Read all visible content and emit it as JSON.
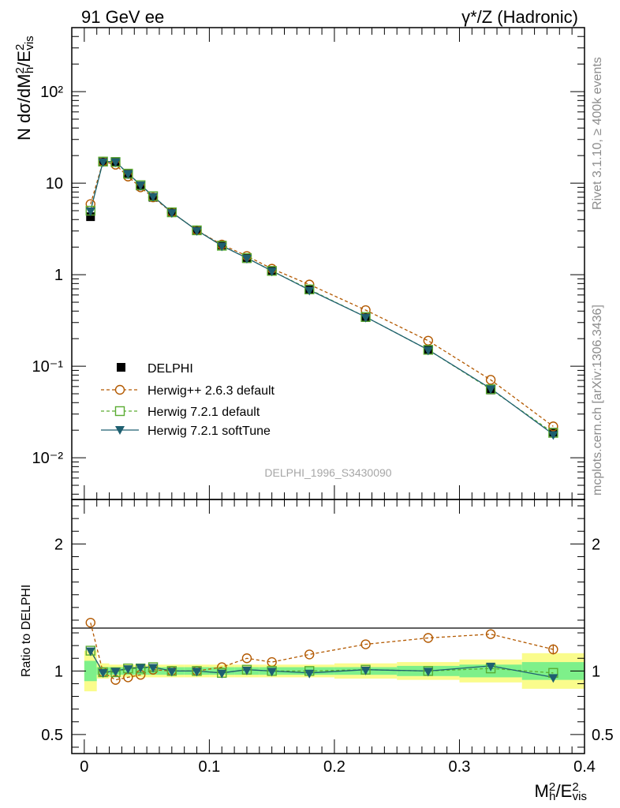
{
  "header": {
    "energy_label": "91 GeV ee",
    "process_label": "γ*/Z (Hadronic)"
  },
  "side_labels": {
    "rivet": "Rivet 3.1.10, ≥ 400k events",
    "mcplots": "mcplots.cern.ch [arXiv:1306.3436]"
  },
  "analysis_id": "DELPHI_1996_S3430090",
  "colors": {
    "data": "#000000",
    "herwigpp": "#b35900",
    "herwig_default": "#5aac32",
    "herwig_soft": "#1e5f70",
    "band_inner": "#7ef08a",
    "band_outer": "#fafc8c"
  },
  "chart_data": [
    {
      "type": "line",
      "panel": "main",
      "ylabel": "N dσ/dM²h/E²vis",
      "yscale": "log",
      "ylim": [
        0.0035,
        500
      ],
      "xlim": [
        -0.01,
        0.4
      ],
      "ytick_labels": [
        "10⁻²",
        "10⁻¹",
        "1",
        "10",
        "10²"
      ],
      "legend_position": "center-left",
      "x": [
        0.005,
        0.015,
        0.025,
        0.035,
        0.045,
        0.055,
        0.07,
        0.09,
        0.11,
        0.13,
        0.15,
        0.18,
        0.225,
        0.275,
        0.325,
        0.375
      ],
      "series": [
        {
          "name": "DELPHI",
          "values": [
            4.3,
            17.3,
            17.2,
            12.5,
            9.3,
            7.0,
            4.8,
            3.05,
            2.1,
            1.5,
            1.1,
            0.69,
            0.34,
            0.15,
            0.055,
            0.019
          ]
        },
        {
          "name": "Herwig++ 2.6.3 default",
          "values": [
            5.9,
            17.2,
            15.9,
            11.8,
            9.0,
            7.0,
            4.8,
            3.05,
            2.13,
            1.6,
            1.16,
            0.78,
            0.41,
            0.19,
            0.071,
            0.022
          ]
        },
        {
          "name": "Herwig 7.2.1 default",
          "values": [
            5.0,
            17.2,
            17.0,
            12.7,
            9.5,
            7.2,
            4.8,
            3.05,
            2.07,
            1.52,
            1.1,
            0.69,
            0.345,
            0.151,
            0.056,
            0.0187
          ]
        },
        {
          "name": "Herwig 7.2.1 softTune",
          "values": [
            5.0,
            17.2,
            17.2,
            12.7,
            9.6,
            7.2,
            4.8,
            3.05,
            2.07,
            1.52,
            1.1,
            0.68,
            0.345,
            0.151,
            0.057,
            0.018
          ]
        }
      ]
    },
    {
      "type": "line",
      "panel": "ratio",
      "ylabel": "Ratio to DELPHI",
      "ylim": [
        0.35,
        2.35
      ],
      "xlim": [
        -0.01,
        0.4
      ],
      "xlabel": "M²h/E²vis",
      "ytick_labels": [
        "0.5",
        "1",
        "2"
      ],
      "xtick_labels": [
        "0",
        "0.1",
        "0.2",
        "0.3",
        "0.4"
      ],
      "x": [
        0.005,
        0.015,
        0.025,
        0.035,
        0.045,
        0.055,
        0.07,
        0.09,
        0.11,
        0.13,
        0.15,
        0.18,
        0.225,
        0.275,
        0.325,
        0.375
      ],
      "bin_edges": [
        0.0,
        0.01,
        0.02,
        0.03,
        0.04,
        0.05,
        0.06,
        0.08,
        0.1,
        0.12,
        0.14,
        0.16,
        0.2,
        0.25,
        0.3,
        0.35,
        0.4
      ],
      "band_inner": [
        0.08,
        0.03,
        0.03,
        0.03,
        0.03,
        0.03,
        0.03,
        0.03,
        0.03,
        0.03,
        0.03,
        0.03,
        0.03,
        0.04,
        0.05,
        0.07
      ],
      "band_outer": [
        0.16,
        0.06,
        0.05,
        0.05,
        0.05,
        0.05,
        0.05,
        0.05,
        0.05,
        0.05,
        0.05,
        0.05,
        0.06,
        0.07,
        0.09,
        0.14
      ],
      "series": [
        {
          "name": "Herwig++ 2.6.3 default",
          "values": [
            1.38,
            0.99,
            0.93,
            0.95,
            0.97,
            1.01,
            1.0,
            1.0,
            1.03,
            1.1,
            1.07,
            1.13,
            1.21,
            1.26,
            1.29,
            1.17
          ]
        },
        {
          "name": "Herwig 7.2.1 default",
          "values": [
            1.16,
            0.99,
            0.99,
            1.02,
            1.02,
            1.03,
            1.0,
            1.0,
            0.985,
            1.01,
            1.0,
            1.0,
            1.01,
            1.0,
            1.02,
            0.985
          ]
        },
        {
          "name": "Herwig 7.2.1 softTune",
          "values": [
            1.16,
            0.99,
            1.0,
            1.02,
            1.03,
            1.03,
            1.0,
            1.0,
            0.985,
            1.01,
            1.0,
            0.985,
            1.01,
            1.0,
            1.04,
            0.95
          ]
        }
      ]
    }
  ]
}
